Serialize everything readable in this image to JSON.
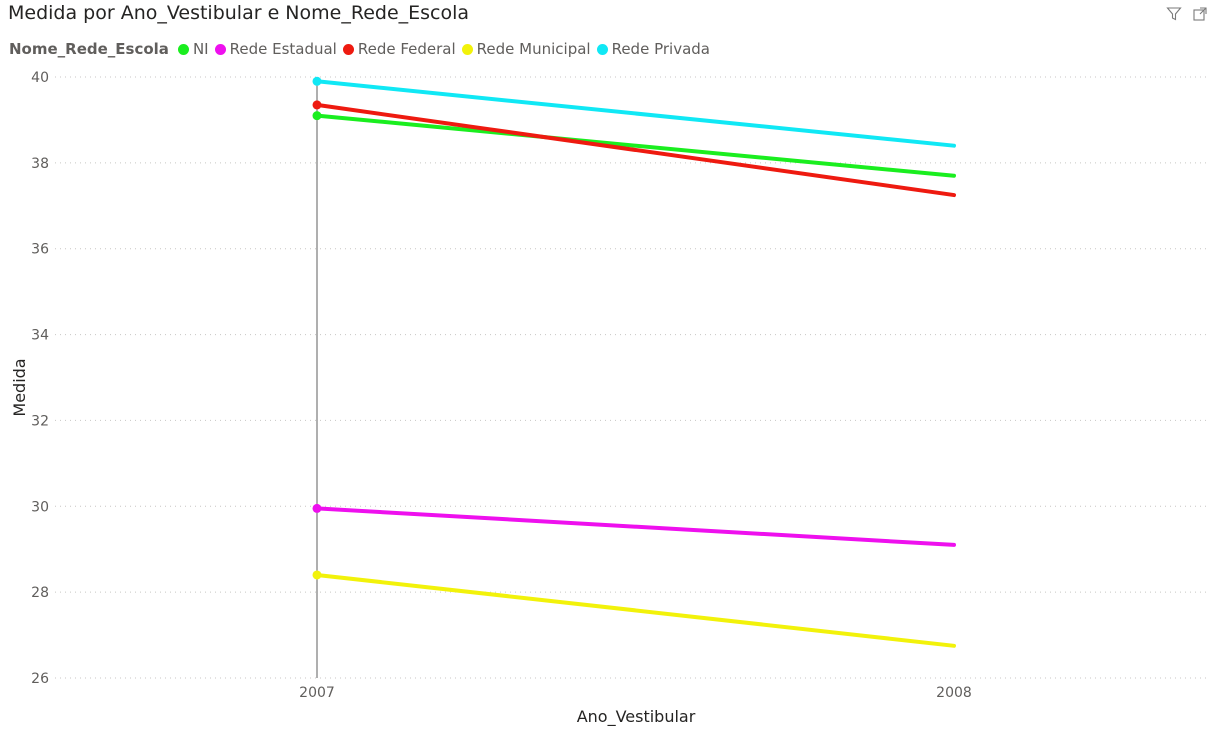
{
  "title": "Medida por Ano_Vestibular e Nome_Rede_Escola",
  "toolbar": {
    "filter_icon": "filter-icon",
    "focus_icon": "focus-mode-icon"
  },
  "legend": {
    "title": "Nome_Rede_Escola",
    "items": [
      {
        "label": "NI",
        "color": "#1aee1f"
      },
      {
        "label": "Rede Estadual",
        "color": "#ee10ee"
      },
      {
        "label": "Rede Federal",
        "color": "#ee1a10"
      },
      {
        "label": "Rede Municipal",
        "color": "#f2f20a"
      },
      {
        "label": "Rede Privada",
        "color": "#10e8f5"
      }
    ]
  },
  "chart_data": {
    "type": "line",
    "xlabel": "Ano_Vestibular",
    "ylabel": "Medida",
    "categories": [
      "2007",
      "2008"
    ],
    "ylim": [
      26,
      40
    ],
    "yticks": [
      26,
      28,
      30,
      32,
      34,
      36,
      38,
      40
    ],
    "grid": true,
    "legend_position": "top-left",
    "series": [
      {
        "name": "NI",
        "color": "#1aee1f",
        "values": [
          39.1,
          37.7
        ]
      },
      {
        "name": "Rede Estadual",
        "color": "#ee10ee",
        "values": [
          29.95,
          29.1
        ]
      },
      {
        "name": "Rede Federal",
        "color": "#ee1a10",
        "values": [
          39.35,
          37.25
        ]
      },
      {
        "name": "Rede Municipal",
        "color": "#f2f20a",
        "values": [
          28.4,
          26.75
        ]
      },
      {
        "name": "Rede Privada",
        "color": "#10e8f5",
        "values": [
          39.9,
          38.4
        ]
      }
    ]
  }
}
